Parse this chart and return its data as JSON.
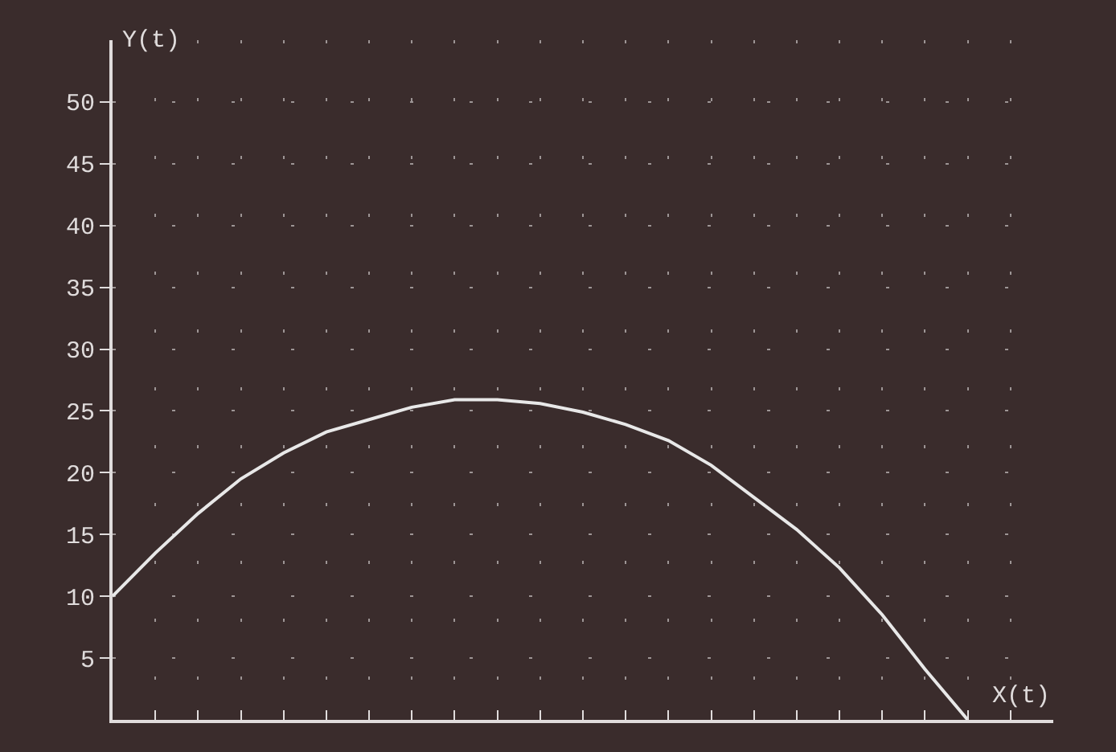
{
  "chart_data": {
    "type": "line",
    "xlabel": "X(t)",
    "ylabel": "Y(t)",
    "categories": [
      null,
      null,
      null,
      null,
      null,
      null,
      null,
      null,
      null,
      null,
      null,
      null,
      null,
      null,
      null,
      null,
      null,
      null,
      null,
      null,
      null,
      null,
      null
    ],
    "series": [
      {
        "color": "#e8e8e8",
        "values": [
          10.0,
          13.5,
          16.7,
          19.5,
          21.6,
          23.3,
          24.3,
          25.3,
          25.9,
          25.9,
          25.6,
          24.9,
          23.9,
          22.6,
          20.6,
          18.0,
          15.4,
          12.3,
          8.5,
          4.1,
          0,
          null,
          null
        ]
      }
    ],
    "ylim": [
      0,
      55
    ],
    "yticks": [
      5,
      10,
      15,
      20,
      25,
      30,
      35,
      40,
      45,
      50
    ],
    "grid": true,
    "marker": "none",
    "line_style": "solid"
  }
}
